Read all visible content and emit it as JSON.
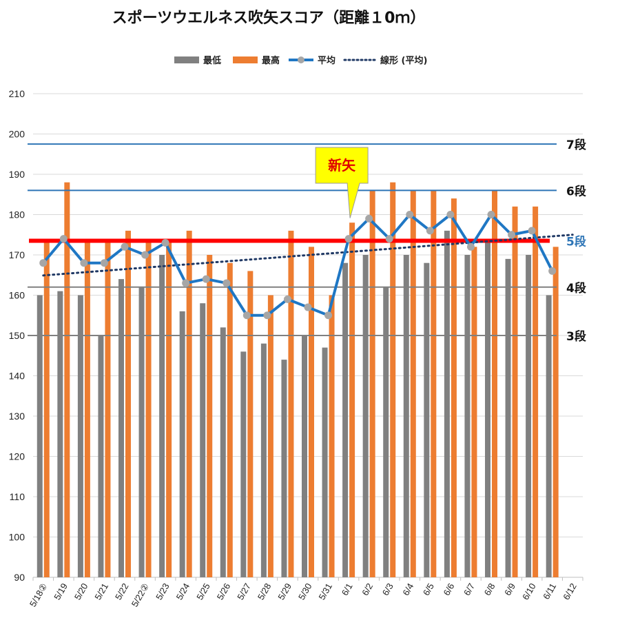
{
  "chart_data": {
    "type": "bar",
    "title": "スポーツウエルネス吹矢スコア（距離１0ｍ）",
    "categories": [
      "5/18②",
      "5/19",
      "5/20",
      "5/21",
      "5/22",
      "5/22②",
      "5/23",
      "5/24",
      "5/25",
      "5/26",
      "5/27",
      "5/28",
      "5/29",
      "5/30",
      "5/31",
      "6/1",
      "6/2",
      "6/3",
      "6/4",
      "6/5",
      "6/6",
      "6/7",
      "6/8",
      "6/9",
      "6/10",
      "6/11",
      "6/12"
    ],
    "series": [
      {
        "name": "最低",
        "kind": "bar",
        "color": "#808080",
        "values": [
          160,
          161,
          160,
          150,
          164,
          162,
          170,
          156,
          158,
          152,
          146,
          148,
          144,
          150,
          147,
          168,
          170,
          162,
          170,
          168,
          176,
          170,
          173,
          169,
          170,
          160,
          null
        ]
      },
      {
        "name": "最高",
        "kind": "bar",
        "color": "#ed7d31",
        "values": [
          174,
          188,
          174,
          174,
          176,
          174,
          174,
          176,
          170,
          168,
          166,
          160,
          176,
          172,
          160,
          178,
          186,
          188,
          186,
          186,
          184,
          172,
          186,
          182,
          182,
          172,
          null
        ]
      },
      {
        "name": "平均",
        "kind": "line",
        "color": "#1f77c4",
        "marker_color": "#a6a6a6",
        "values": [
          168,
          174,
          168,
          168,
          172,
          170,
          173,
          163,
          164,
          163,
          155,
          155,
          159,
          157,
          155,
          174,
          179,
          174,
          180,
          176,
          180,
          172,
          180,
          175,
          176,
          166,
          null
        ]
      },
      {
        "name": "線形 (平均)",
        "kind": "trend",
        "color": "#1f3864",
        "values": [
          164.9,
          165.3,
          165.7,
          166.1,
          166.5,
          166.9,
          167.3,
          167.6,
          168.0,
          168.4,
          168.8,
          169.2,
          169.6,
          170.0,
          170.3,
          170.7,
          171.1,
          171.5,
          171.9,
          172.3,
          172.7,
          173.0,
          173.4,
          173.8,
          174.2,
          174.6,
          175.0
        ]
      }
    ],
    "ylim": [
      90,
      210
    ],
    "yticks": [
      90,
      100,
      110,
      120,
      130,
      140,
      150,
      160,
      170,
      180,
      190,
      200,
      210
    ],
    "grid": true,
    "legend": "top-center",
    "reference_lines": [
      {
        "label": "7段",
        "value": 197.5,
        "color": "#2e75b6",
        "label_color": "#111111"
      },
      {
        "label": "6段",
        "value": 186,
        "color": "#2e75b6",
        "label_color": "#111111"
      },
      {
        "label": "5段",
        "value": 173.5,
        "color": "#ff0000",
        "label_color": "#2e75b6"
      },
      {
        "label": "4段",
        "value": 162,
        "color": "#808080",
        "label_color": "#111111"
      },
      {
        "label": "3段",
        "value": 150,
        "color": "#808080",
        "label_color": "#111111"
      }
    ],
    "annotation": {
      "text": "新矢",
      "category": "6/1",
      "fill": "#ffff00",
      "text_color": "#e00000"
    }
  }
}
